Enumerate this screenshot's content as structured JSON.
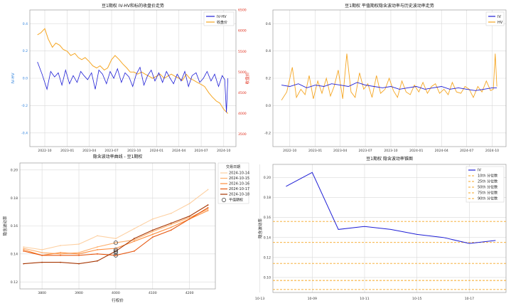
{
  "chart_data": [
    {
      "type": "line",
      "title": "豆1期权 IV-HV和标的收盘价走势",
      "ylabel": "IV-HV",
      "y2label": "收盘价",
      "ylim": [
        -0.5,
        0.5
      ],
      "y2lim": [
        3200,
        6500
      ],
      "yticks": [
        "-0.4",
        "-0.2",
        "0.0",
        "0.2",
        "0.4"
      ],
      "y2ticks": [
        "3500",
        "4000",
        "4500",
        "5000",
        "5500",
        "6000",
        "6500"
      ],
      "xticks": [
        "2022-10",
        "2023-01",
        "2023-04",
        "2023-07",
        "2023-10",
        "2024-01",
        "2024-04",
        "2024-07",
        "2024-10"
      ],
      "grid": true,
      "legend": "top-right",
      "series": [
        {
          "name": "IV-HV",
          "axis": "left",
          "color": "#1f1fd6",
          "x": [
            "2022-09-01",
            "2022-09-20",
            "2022-10-10",
            "2022-10-25",
            "2022-11-10",
            "2022-11-25",
            "2022-12-10",
            "2022-12-25",
            "2023-01-10",
            "2023-01-25",
            "2023-02-10",
            "2023-02-25",
            "2023-03-10",
            "2023-03-25",
            "2023-04-10",
            "2023-04-25",
            "2023-05-10",
            "2023-05-25",
            "2023-06-10",
            "2023-06-25",
            "2023-07-10",
            "2023-07-25",
            "2023-08-10",
            "2023-08-25",
            "2023-09-10",
            "2023-09-25",
            "2023-10-10",
            "2023-10-25",
            "2023-11-10",
            "2023-11-25",
            "2023-12-10",
            "2023-12-25",
            "2024-01-10",
            "2024-01-25",
            "2024-02-10",
            "2024-02-25",
            "2024-03-10",
            "2024-03-25",
            "2024-04-10",
            "2024-04-25",
            "2024-05-10",
            "2024-05-25",
            "2024-06-10",
            "2024-06-25",
            "2024-07-10",
            "2024-07-25",
            "2024-08-10",
            "2024-08-25",
            "2024-09-10",
            "2024-09-25",
            "2024-10-05",
            "2024-10-12",
            "2024-10-18"
          ],
          "values": [
            0.12,
            0.03,
            -0.08,
            0.05,
            0.01,
            0.04,
            -0.05,
            0.06,
            -0.04,
            0.02,
            -0.03,
            0.05,
            0.02,
            -0.01,
            0.04,
            -0.08,
            0.06,
            0.03,
            -0.04,
            0.05,
            0.0,
            0.07,
            -0.03,
            0.04,
            0.01,
            -0.06,
            0.03,
            0.08,
            -0.05,
            0.02,
            0.06,
            -0.02,
            0.04,
            -0.03,
            0.05,
            0.0,
            -0.04,
            0.03,
            -0.02,
            0.05,
            -0.06,
            0.02,
            0.04,
            -0.03,
            0.0,
            0.05,
            -0.02,
            0.03,
            -0.06,
            0.02,
            -0.01,
            -0.25,
            0.0
          ]
        },
        {
          "name": "收盘价",
          "axis": "right",
          "color": "#f5a623",
          "x": [
            "2022-09-01",
            "2022-09-15",
            "2022-10-01",
            "2022-10-15",
            "2022-11-01",
            "2022-11-15",
            "2022-12-01",
            "2022-12-15",
            "2023-01-01",
            "2023-01-15",
            "2023-02-01",
            "2023-02-15",
            "2023-03-01",
            "2023-03-15",
            "2023-04-01",
            "2023-04-15",
            "2023-05-01",
            "2023-05-15",
            "2023-06-01",
            "2023-06-15",
            "2023-07-01",
            "2023-07-15",
            "2023-08-01",
            "2023-08-15",
            "2023-09-01",
            "2023-09-15",
            "2023-10-01",
            "2023-10-15",
            "2023-11-01",
            "2023-11-15",
            "2023-12-01",
            "2023-12-15",
            "2024-01-01",
            "2024-01-15",
            "2024-02-01",
            "2024-02-15",
            "2024-03-01",
            "2024-03-15",
            "2024-04-01",
            "2024-04-15",
            "2024-05-01",
            "2024-05-15",
            "2024-06-01",
            "2024-06-15",
            "2024-07-01",
            "2024-07-15",
            "2024-08-01",
            "2024-08-15",
            "2024-09-01",
            "2024-09-15",
            "2024-10-01",
            "2024-10-18"
          ],
          "values": [
            5900,
            5950,
            6050,
            5800,
            5600,
            5700,
            5650,
            5550,
            5500,
            5400,
            5450,
            5350,
            5300,
            5350,
            5250,
            5150,
            5100,
            5150,
            5050,
            5100,
            5300,
            5400,
            5300,
            5200,
            5100,
            5000,
            5000,
            4950,
            5000,
            4950,
            4900,
            4850,
            4900,
            4950,
            4850,
            4900,
            4950,
            4900,
            4850,
            4800,
            4950,
            4850,
            4800,
            4750,
            4700,
            4650,
            4500,
            4400,
            4300,
            4250,
            4100,
            4000
          ]
        }
      ]
    },
    {
      "type": "line",
      "title": "豆1期权 平值期权隐含波动率与历史波动率走势",
      "ylim": [
        -0.3,
        0.7
      ],
      "yticks": [
        "-0.2",
        "0.0",
        "0.2",
        "0.4",
        "0.6"
      ],
      "xticks": [
        "2022-10",
        "2023-01",
        "2023-04",
        "2023-07",
        "2023-10",
        "2024-01",
        "2024-04",
        "2024-07",
        "2024-10"
      ],
      "grid": true,
      "legend": "top-right",
      "series": [
        {
          "name": "IV",
          "color": "#1f1fd6",
          "x": [
            "2022-09-01",
            "2022-10-01",
            "2022-11-01",
            "2022-12-01",
            "2023-01-01",
            "2023-02-01",
            "2023-03-01",
            "2023-04-01",
            "2023-05-01",
            "2023-06-01",
            "2023-07-01",
            "2023-08-01",
            "2023-09-01",
            "2023-10-01",
            "2023-11-01",
            "2023-12-01",
            "2024-01-01",
            "2024-02-01",
            "2024-03-01",
            "2024-04-01",
            "2024-05-01",
            "2024-06-01",
            "2024-07-01",
            "2024-08-01",
            "2024-09-01",
            "2024-10-01",
            "2024-10-18"
          ],
          "values": [
            0.15,
            0.14,
            0.16,
            0.13,
            0.15,
            0.14,
            0.16,
            0.15,
            0.14,
            0.17,
            0.15,
            0.14,
            0.13,
            0.14,
            0.12,
            0.13,
            0.14,
            0.12,
            0.13,
            0.14,
            0.12,
            0.13,
            0.12,
            0.11,
            0.12,
            0.13,
            0.13
          ]
        },
        {
          "name": "HV",
          "color": "#f5a623",
          "x": [
            "2022-09-01",
            "2022-09-20",
            "2022-10-10",
            "2022-10-25",
            "2022-11-10",
            "2022-11-25",
            "2022-12-10",
            "2022-12-25",
            "2023-01-10",
            "2023-01-25",
            "2023-02-10",
            "2023-02-25",
            "2023-03-10",
            "2023-03-25",
            "2023-04-10",
            "2023-04-25",
            "2023-05-10",
            "2023-05-25",
            "2023-06-10",
            "2023-06-25",
            "2023-07-10",
            "2023-07-25",
            "2023-08-10",
            "2023-08-25",
            "2023-09-10",
            "2023-09-25",
            "2023-10-10",
            "2023-10-25",
            "2023-11-10",
            "2023-11-25",
            "2023-12-10",
            "2023-12-25",
            "2024-01-10",
            "2024-01-25",
            "2024-02-10",
            "2024-02-25",
            "2024-03-10",
            "2024-03-25",
            "2024-04-10",
            "2024-04-25",
            "2024-05-10",
            "2024-05-25",
            "2024-06-10",
            "2024-06-25",
            "2024-07-10",
            "2024-07-25",
            "2024-08-10",
            "2024-08-25",
            "2024-09-10",
            "2024-09-25",
            "2024-10-05",
            "2024-10-12",
            "2024-10-18"
          ],
          "values": [
            0.04,
            0.1,
            0.28,
            0.06,
            0.12,
            0.08,
            0.22,
            0.05,
            0.18,
            0.09,
            0.2,
            0.07,
            0.14,
            0.26,
            0.05,
            0.38,
            0.1,
            0.06,
            0.24,
            0.12,
            0.16,
            0.06,
            0.22,
            0.09,
            0.12,
            0.2,
            0.11,
            0.06,
            0.18,
            0.1,
            0.08,
            0.15,
            0.1,
            0.17,
            0.09,
            0.14,
            0.16,
            0.09,
            0.12,
            0.08,
            0.17,
            0.1,
            0.09,
            0.14,
            0.12,
            0.06,
            0.14,
            0.1,
            0.18,
            0.11,
            0.12,
            0.38,
            0.14
          ]
        }
      ]
    },
    {
      "type": "line",
      "title": "隐含波动率曲线 - 豆1期权",
      "xlabel": "行权价",
      "ylabel": "隐含波动率",
      "xlim": [
        3740,
        4270
      ],
      "ylim": [
        0.115,
        0.205
      ],
      "xticks": [
        3800,
        3900,
        4000,
        4100,
        4200
      ],
      "yticks": [
        "0.12",
        "0.14",
        "0.16",
        "0.18",
        "0.20"
      ],
      "grid": true,
      "legend_title": "交易日期",
      "legend": "upper-right outside",
      "x": [
        3750,
        3800,
        3850,
        3900,
        3950,
        4000,
        4050,
        4100,
        4150,
        4200,
        4250
      ],
      "series": [
        {
          "name": "2024-10-14",
          "color": "#fdd0a2",
          "values": [
            0.145,
            0.143,
            0.146,
            0.147,
            0.153,
            0.151,
            0.158,
            0.165,
            0.169,
            0.176,
            0.186
          ]
        },
        {
          "name": "2024-10-15",
          "color": "#fdae6b",
          "values": [
            0.144,
            0.141,
            0.14,
            0.141,
            0.145,
            0.148,
            0.15,
            0.156,
            0.161,
            0.166,
            0.172
          ]
        },
        {
          "name": "2024-10-16",
          "color": "#fd8d3c",
          "values": [
            0.143,
            0.139,
            0.141,
            0.14,
            0.143,
            0.144,
            0.149,
            0.154,
            0.159,
            0.165,
            0.171
          ]
        },
        {
          "name": "2024-10-17",
          "color": "#e6550d",
          "values": [
            0.142,
            0.139,
            0.139,
            0.139,
            0.14,
            0.139,
            0.142,
            0.152,
            0.157,
            0.165,
            0.173
          ]
        },
        {
          "name": "2024-10-18",
          "color": "#a63603",
          "values": [
            0.133,
            0.134,
            0.134,
            0.133,
            0.135,
            0.142,
            0.151,
            0.157,
            0.162,
            0.167,
            0.175
          ]
        }
      ],
      "atm_marker": {
        "name": "平值期权",
        "x": 4000,
        "values": [
          0.148,
          0.143,
          0.141,
          0.139,
          0.142
        ]
      }
    },
    {
      "type": "line",
      "title": "豆1期权 隐含波动率锥图",
      "ylabel": "隐含波动率",
      "ylim": [
        0.085,
        0.213
      ],
      "yticks": [
        "0.10",
        "0.12",
        "0.14",
        "0.16",
        "0.18",
        "0.20"
      ],
      "xticks": [
        "10-09",
        "10-11",
        "10-13",
        "10-15",
        "10-17"
      ],
      "grid": true,
      "legend": "top-right",
      "x": [
        "10-08",
        "10-09",
        "10-10",
        "10-11",
        "10-14",
        "10-15",
        "10-16",
        "10-17",
        "10-18"
      ],
      "series": [
        {
          "name": "IV",
          "color": "#1f1fd6",
          "values": [
            0.191,
            0.205,
            0.148,
            0.151,
            0.148,
            0.143,
            0.14,
            0.134,
            0.137
          ]
        }
      ],
      "percentiles": [
        {
          "name": "10th 分位数",
          "value": 0.088
        },
        {
          "name": "25th 分位数",
          "value": 0.097
        },
        {
          "name": "50th 分位数",
          "value": 0.114
        },
        {
          "name": "75th 分位数",
          "value": 0.135
        },
        {
          "name": "90th 分位数",
          "value": 0.156
        }
      ],
      "percentile_color": "#f5a623"
    }
  ]
}
